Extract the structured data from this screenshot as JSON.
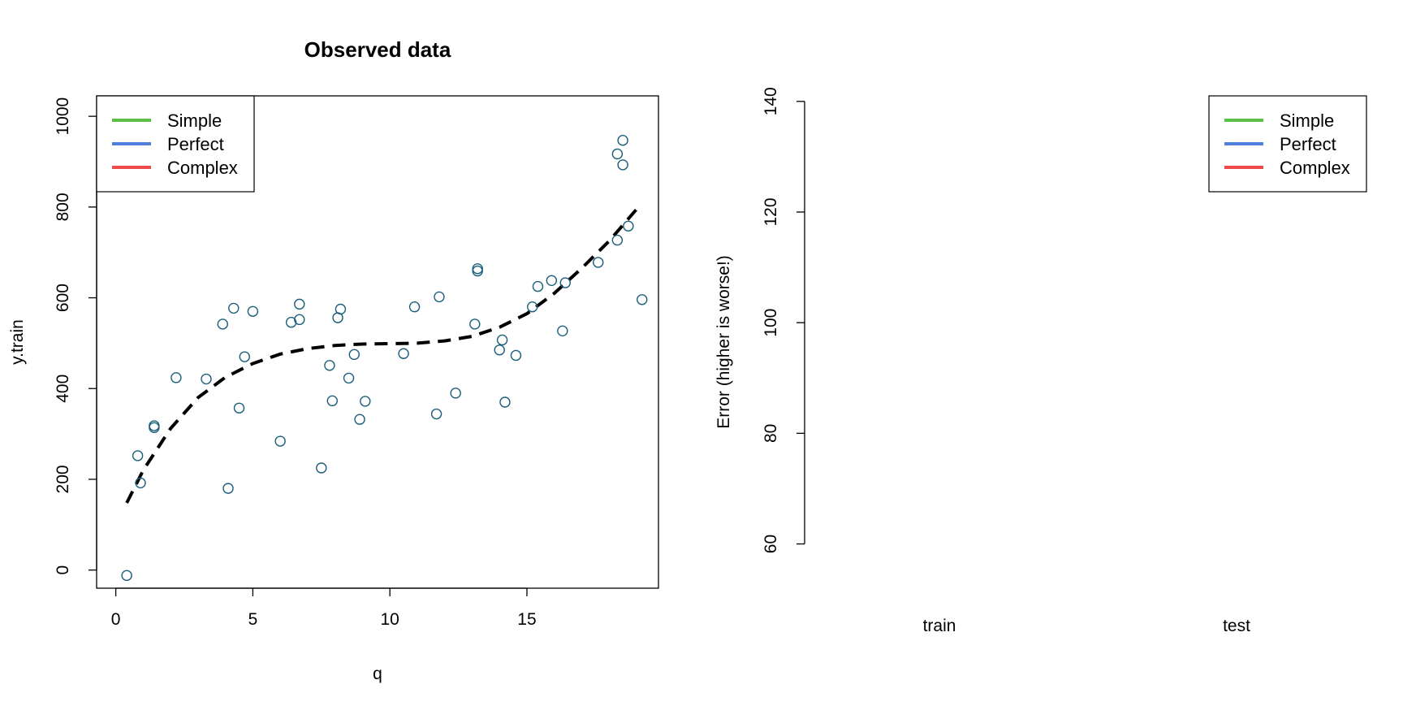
{
  "chart_data": [
    {
      "type": "scatter",
      "title": "Observed data",
      "xlabel": "q",
      "ylabel": "y.train",
      "xlim": [
        -0.7,
        19.8
      ],
      "ylim": [
        -40,
        1045
      ],
      "xticks": [
        0,
        5,
        10,
        15
      ],
      "yticks": [
        0,
        200,
        400,
        600,
        800,
        1000
      ],
      "point_color": "#1a5e7a",
      "grid": false,
      "points": [
        {
          "x": 0.4,
          "y": -12
        },
        {
          "x": 0.8,
          "y": 252
        },
        {
          "x": 0.9,
          "y": 192
        },
        {
          "x": 1.4,
          "y": 318
        },
        {
          "x": 1.4,
          "y": 314
        },
        {
          "x": 2.2,
          "y": 424
        },
        {
          "x": 3.3,
          "y": 421
        },
        {
          "x": 3.9,
          "y": 542
        },
        {
          "x": 4.1,
          "y": 180
        },
        {
          "x": 4.3,
          "y": 577
        },
        {
          "x": 4.5,
          "y": 357
        },
        {
          "x": 4.7,
          "y": 470
        },
        {
          "x": 5.0,
          "y": 570
        },
        {
          "x": 6.0,
          "y": 284
        },
        {
          "x": 6.4,
          "y": 546
        },
        {
          "x": 6.7,
          "y": 586
        },
        {
          "x": 6.7,
          "y": 552
        },
        {
          "x": 7.5,
          "y": 225
        },
        {
          "x": 7.8,
          "y": 451
        },
        {
          "x": 7.9,
          "y": 373
        },
        {
          "x": 8.1,
          "y": 556
        },
        {
          "x": 8.2,
          "y": 575
        },
        {
          "x": 8.5,
          "y": 423
        },
        {
          "x": 8.7,
          "y": 475
        },
        {
          "x": 8.9,
          "y": 332
        },
        {
          "x": 9.1,
          "y": 372
        },
        {
          "x": 10.5,
          "y": 477
        },
        {
          "x": 10.9,
          "y": 580
        },
        {
          "x": 11.7,
          "y": 344
        },
        {
          "x": 11.8,
          "y": 602
        },
        {
          "x": 12.4,
          "y": 390
        },
        {
          "x": 13.1,
          "y": 542
        },
        {
          "x": 13.2,
          "y": 664
        },
        {
          "x": 13.2,
          "y": 659
        },
        {
          "x": 14.0,
          "y": 485
        },
        {
          "x": 14.1,
          "y": 507
        },
        {
          "x": 14.2,
          "y": 370
        },
        {
          "x": 14.6,
          "y": 473
        },
        {
          "x": 15.2,
          "y": 580
        },
        {
          "x": 15.4,
          "y": 625
        },
        {
          "x": 15.9,
          "y": 638
        },
        {
          "x": 16.3,
          "y": 527
        },
        {
          "x": 16.4,
          "y": 633
        },
        {
          "x": 17.6,
          "y": 678
        },
        {
          "x": 18.3,
          "y": 917
        },
        {
          "x": 18.3,
          "y": 727
        },
        {
          "x": 18.5,
          "y": 947
        },
        {
          "x": 18.5,
          "y": 893
        },
        {
          "x": 18.7,
          "y": 758
        },
        {
          "x": 19.2,
          "y": 596
        }
      ],
      "curve": {
        "style": "dashed",
        "color": "#000000",
        "x": [
          0.4,
          1.0,
          2.0,
          3.0,
          4.0,
          5.0,
          6.0,
          7.0,
          8.0,
          9.0,
          10.0,
          11.0,
          12.0,
          13.0,
          14.0,
          15.0,
          16.0,
          17.0,
          18.0,
          19.0
        ],
        "y": [
          148,
          220,
          312,
          380,
          425,
          455,
          476,
          488,
          495,
          498,
          499,
          500,
          505,
          515,
          535,
          565,
          610,
          665,
          725,
          795
        ]
      },
      "legend": {
        "position": "top-left",
        "entries": [
          {
            "label": "Simple",
            "color": "#5cbf4a"
          },
          {
            "label": "Perfect",
            "color": "#4f7fdc"
          },
          {
            "label": "Complex",
            "color": "#ee4a4a"
          }
        ]
      }
    },
    {
      "type": "line",
      "title": "",
      "xlabel": "",
      "ylabel": "Error (higher is worse!)",
      "categories": [
        "train",
        "test"
      ],
      "ylim": [
        52,
        141
      ],
      "yticks": [
        60,
        80,
        100,
        120,
        140
      ],
      "series": [],
      "legend": {
        "position": "top-right",
        "entries": [
          {
            "label": "Simple",
            "color": "#5cbf4a"
          },
          {
            "label": "Perfect",
            "color": "#4f7fdc"
          },
          {
            "label": "Complex",
            "color": "#ee4a4a"
          }
        ]
      }
    }
  ]
}
